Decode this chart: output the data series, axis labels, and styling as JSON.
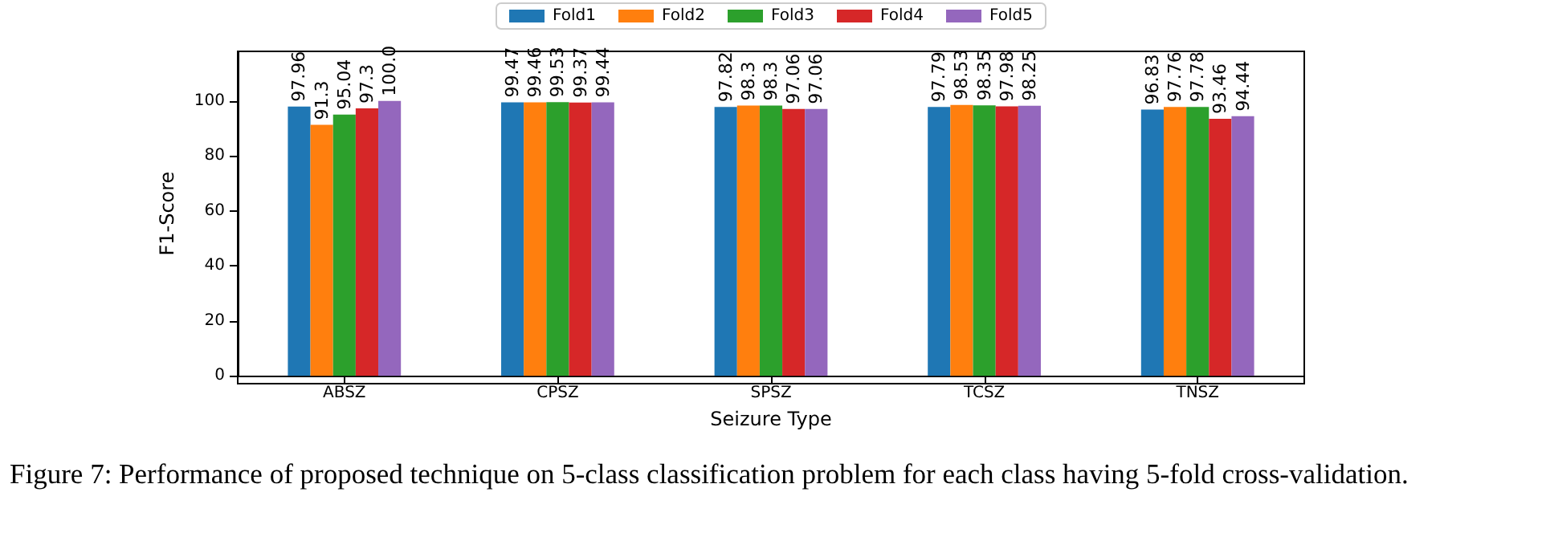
{
  "chart_data": {
    "type": "bar",
    "xlabel": "Seizure Type",
    "ylabel": "F1-Score",
    "categories": [
      "ABSZ",
      "CPSZ",
      "SPSZ",
      "TCSZ",
      "TNSZ"
    ],
    "series": [
      {
        "name": "Fold1",
        "color": "#1f77b4",
        "values": [
          97.96,
          99.47,
          97.82,
          97.79,
          96.83
        ],
        "value_labels": [
          "97.96",
          "99.47",
          "97.82",
          "97.79",
          "96.83"
        ]
      },
      {
        "name": "Fold2",
        "color": "#ff7f0e",
        "values": [
          91.3,
          99.46,
          98.3,
          98.53,
          97.76
        ],
        "value_labels": [
          "91.3",
          "99.46",
          "98.3",
          "98.53",
          "97.76"
        ]
      },
      {
        "name": "Fold3",
        "color": "#2ca02c",
        "values": [
          95.04,
          99.53,
          98.3,
          98.35,
          97.78
        ],
        "value_labels": [
          "95.04",
          "99.53",
          "98.3",
          "98.35",
          "97.78"
        ]
      },
      {
        "name": "Fold4",
        "color": "#d62728",
        "values": [
          97.3,
          99.37,
          97.06,
          97.98,
          93.46
        ],
        "value_labels": [
          "97.3",
          "99.37",
          "97.06",
          "97.98",
          "93.46"
        ]
      },
      {
        "name": "Fold5",
        "color": "#9467bd",
        "values": [
          100.0,
          99.44,
          97.06,
          98.25,
          94.44
        ],
        "value_labels": [
          "100.0",
          "99.44",
          "97.06",
          "98.25",
          "94.44"
        ]
      }
    ],
    "ylim": [
      0,
      118
    ],
    "yticks": [
      0,
      20,
      40,
      60,
      80,
      100
    ],
    "grid": false,
    "legend": "top",
    "annotations": [
      "Figure 7: Performance of proposed technique on 5-class classification problem for each class having 5-fold cross-validation."
    ]
  }
}
